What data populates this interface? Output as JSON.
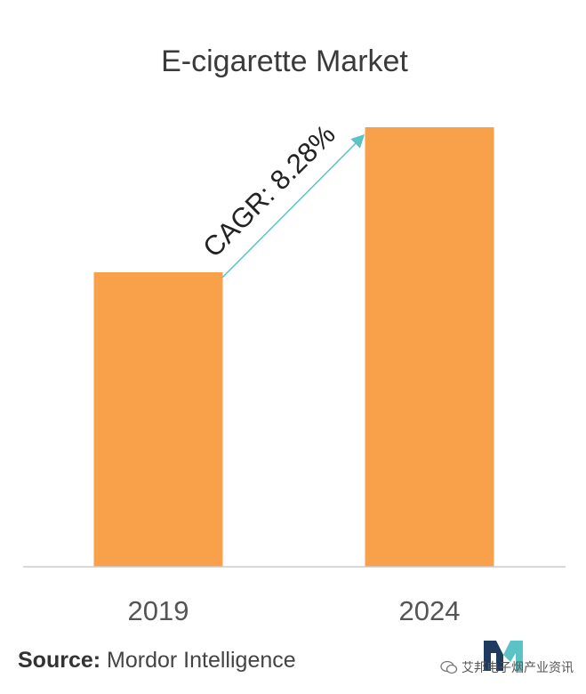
{
  "chart_data": {
    "type": "bar",
    "title": "E-cigarette Market",
    "categories": [
      "2019",
      "2024"
    ],
    "values": [
      0.67,
      1.0
    ],
    "ylim": [
      0,
      1
    ],
    "xlabel": "",
    "ylabel": "",
    "grid": false,
    "annotation": "CAGR: 8.28%",
    "colors": {
      "bar": "#F9A04A",
      "arrow": "#5BC2C6",
      "axis": "#cccccc"
    }
  },
  "footer": {
    "source_label": "Source:",
    "source_text": "Mordor Intelligence"
  },
  "watermark": {
    "icon": "wechat-icon",
    "text": "艾邦电子烟产业资讯"
  },
  "logo": {
    "icon": "mordor-logo-icon",
    "colors": {
      "dark": "#1F3A5F",
      "light": "#5BC2C6"
    }
  }
}
